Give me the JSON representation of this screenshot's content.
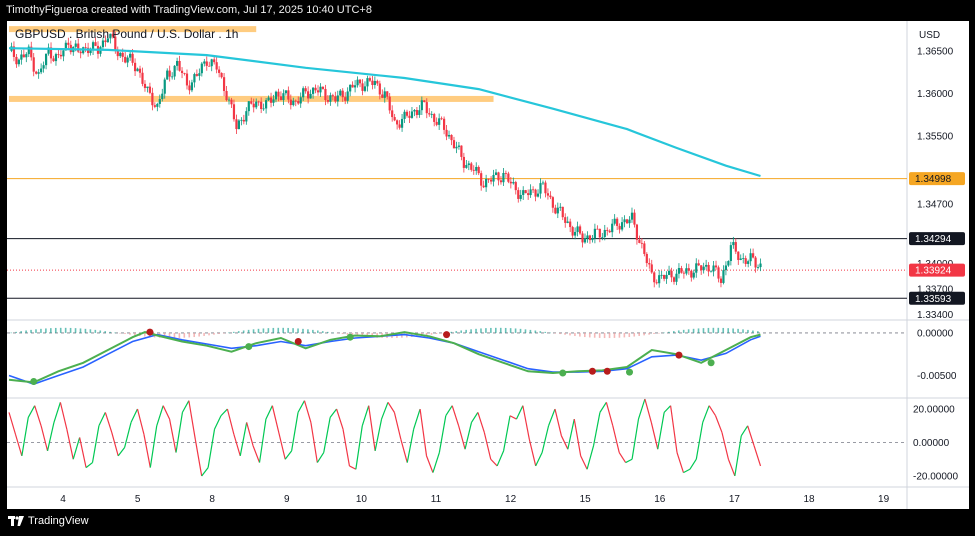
{
  "header": {
    "text": "TimothyFigueroa created with TradingView.com, Jul 17, 2025 10:40 UTC+8"
  },
  "footer": {
    "brand": "TradingView"
  },
  "colors": {
    "up": "#089981",
    "down": "#f23645",
    "ma": "#26c6da",
    "zone": "#ffcc80",
    "level_orange": "#f5a623",
    "level_black": "#131722",
    "current": "#f23645",
    "osc_up": "#00c853",
    "osc_down": "#f23645",
    "wt1": "#4caf50",
    "wt2": "#2962ff",
    "wt_bear": "#b71c1c"
  },
  "chart_data": {
    "type": "line",
    "title": "GBPUSD . British Pound / U.S. Dollar . 1h",
    "currency": "USD",
    "x_labels": [
      "4",
      "5",
      "8",
      "9",
      "10",
      "11",
      "12",
      "15",
      "16",
      "17",
      "18",
      "19"
    ],
    "main": {
      "y_ticks": [
        "1.36500",
        "1.36000",
        "1.35500",
        "1.34700",
        "1.34000",
        "1.33700",
        "1.33400"
      ],
      "y_tick_values": [
        1.365,
        1.36,
        1.355,
        1.347,
        1.34,
        1.337,
        1.334
      ],
      "y_range": [
        1.3335,
        1.3685
      ],
      "price_path": [
        [
          0,
          1.365
        ],
        [
          4,
          1.364
        ],
        [
          8,
          1.3648
        ],
        [
          12,
          1.362
        ],
        [
          16,
          1.365
        ],
        [
          20,
          1.364
        ],
        [
          24,
          1.366
        ],
        [
          28,
          1.3648
        ],
        [
          32,
          1.3655
        ],
        [
          36,
          1.365
        ],
        [
          40,
          1.367
        ],
        [
          44,
          1.3648
        ],
        [
          48,
          1.364
        ],
        [
          52,
          1.363
        ],
        [
          56,
          1.36
        ],
        [
          60,
          1.3585
        ],
        [
          64,
          1.362
        ],
        [
          68,
          1.3635
        ],
        [
          72,
          1.361
        ],
        [
          76,
          1.362
        ],
        [
          80,
          1.364
        ],
        [
          84,
          1.363
        ],
        [
          88,
          1.36
        ],
        [
          92,
          1.356
        ],
        [
          96,
          1.358
        ],
        [
          100,
          1.359
        ],
        [
          104,
          1.3585
        ],
        [
          108,
          1.36
        ],
        [
          112,
          1.3595
        ],
        [
          116,
          1.359
        ],
        [
          120,
          1.36
        ],
        [
          124,
          1.3605
        ],
        [
          128,
          1.3598
        ],
        [
          132,
          1.3593
        ],
        [
          136,
          1.36
        ],
        [
          140,
          1.361
        ],
        [
          144,
          1.3612
        ],
        [
          148,
          1.3612
        ],
        [
          152,
          1.3598
        ],
        [
          156,
          1.3565
        ],
        [
          160,
          1.357
        ],
        [
          164,
          1.358
        ],
        [
          168,
          1.3585
        ],
        [
          172,
          1.357
        ],
        [
          176,
          1.356
        ],
        [
          180,
          1.354
        ],
        [
          184,
          1.352
        ],
        [
          188,
          1.351
        ],
        [
          192,
          1.3495
        ],
        [
          196,
          1.35
        ],
        [
          200,
          1.3505
        ],
        [
          204,
          1.349
        ],
        [
          208,
          1.348
        ],
        [
          212,
          1.3485
        ],
        [
          216,
          1.349
        ],
        [
          220,
          1.347
        ],
        [
          224,
          1.3455
        ],
        [
          228,
          1.344
        ],
        [
          232,
          1.343
        ],
        [
          236,
          1.3433
        ],
        [
          240,
          1.3436
        ],
        [
          244,
          1.3443
        ],
        [
          248,
          1.3449
        ],
        [
          252,
          1.3452
        ],
        [
          256,
          1.342
        ],
        [
          260,
          1.3385
        ],
        [
          264,
          1.3383
        ],
        [
          268,
          1.3387
        ],
        [
          272,
          1.3389
        ],
        [
          276,
          1.3392
        ],
        [
          280,
          1.3395
        ],
        [
          284,
          1.3397
        ],
        [
          288,
          1.338
        ],
        [
          292,
          1.342
        ],
        [
          296,
          1.3406
        ],
        [
          300,
          1.3404
        ],
        [
          304,
          1.3398
        ]
      ],
      "ma_path": [
        [
          0,
          1.3653
        ],
        [
          40,
          1.3651
        ],
        [
          80,
          1.3645
        ],
        [
          120,
          1.363
        ],
        [
          160,
          1.3618
        ],
        [
          190,
          1.3605
        ],
        [
          220,
          1.3582
        ],
        [
          250,
          1.3558
        ],
        [
          270,
          1.3536
        ],
        [
          290,
          1.3515
        ],
        [
          304,
          1.3503
        ]
      ],
      "zones": [
        {
          "x0": 0,
          "x1": 100,
          "y0": 1.3679,
          "y1": 1.3673
        },
        {
          "x0": 0,
          "x1": 196,
          "y0": 1.3597,
          "y1": 1.3591
        }
      ],
      "levels": [
        {
          "value": 1.34998,
          "label": "1.34998",
          "kind": "orange"
        },
        {
          "value": 1.34294,
          "label": "1.34294",
          "kind": "black"
        },
        {
          "value": 1.33924,
          "label": "1.33924",
          "kind": "current"
        },
        {
          "value": 1.33593,
          "label": "1.33593",
          "kind": "black"
        }
      ]
    },
    "oscillator1": {
      "y_ticks": [
        "0.00000",
        "-0.00500"
      ],
      "y_tick_values": [
        0,
        -0.005
      ],
      "y_range": [
        -0.0074,
        0.0014
      ],
      "wt1": [
        [
          0,
          -0.0055
        ],
        [
          10,
          -0.0058
        ],
        [
          20,
          -0.0045
        ],
        [
          30,
          -0.0035
        ],
        [
          40,
          -0.002
        ],
        [
          50,
          -0.0005
        ],
        [
          55,
          0.0001
        ],
        [
          60,
          -0.0003
        ],
        [
          70,
          -0.001
        ],
        [
          80,
          -0.0015
        ],
        [
          90,
          -0.0022
        ],
        [
          100,
          -0.0012
        ],
        [
          110,
          -0.0006
        ],
        [
          120,
          -0.0018
        ],
        [
          130,
          -0.0008
        ],
        [
          140,
          -0.0003
        ],
        [
          150,
          -0.0004
        ],
        [
          160,
          0.0001
        ],
        [
          170,
          -0.0004
        ],
        [
          180,
          -0.0012
        ],
        [
          190,
          -0.0025
        ],
        [
          200,
          -0.0035
        ],
        [
          210,
          -0.0045
        ],
        [
          220,
          -0.0047
        ],
        [
          230,
          -0.0045
        ],
        [
          240,
          -0.0044
        ],
        [
          250,
          -0.004
        ],
        [
          260,
          -0.002
        ],
        [
          270,
          -0.0025
        ],
        [
          280,
          -0.0035
        ],
        [
          290,
          -0.002
        ],
        [
          300,
          -0.0005
        ],
        [
          304,
          -0.0002
        ]
      ],
      "wt2": [
        [
          0,
          -0.005
        ],
        [
          10,
          -0.006
        ],
        [
          20,
          -0.005
        ],
        [
          30,
          -0.004
        ],
        [
          40,
          -0.0025
        ],
        [
          50,
          -0.001
        ],
        [
          60,
          -0.0002
        ],
        [
          70,
          -0.0008
        ],
        [
          80,
          -0.0013
        ],
        [
          90,
          -0.0018
        ],
        [
          100,
          -0.0015
        ],
        [
          110,
          -0.001
        ],
        [
          120,
          -0.0015
        ],
        [
          130,
          -0.001
        ],
        [
          140,
          -0.0006
        ],
        [
          150,
          -0.0004
        ],
        [
          160,
          -0.0002
        ],
        [
          170,
          -0.0006
        ],
        [
          180,
          -0.0012
        ],
        [
          190,
          -0.0022
        ],
        [
          200,
          -0.0032
        ],
        [
          210,
          -0.0042
        ],
        [
          220,
          -0.0046
        ],
        [
          230,
          -0.0046
        ],
        [
          240,
          -0.0045
        ],
        [
          250,
          -0.0042
        ],
        [
          260,
          -0.0028
        ],
        [
          270,
          -0.0026
        ],
        [
          280,
          -0.0032
        ],
        [
          290,
          -0.0024
        ],
        [
          300,
          -0.0008
        ],
        [
          304,
          -0.0004
        ]
      ],
      "dots": [
        {
          "x": 10,
          "v": -0.0057,
          "kind": "green"
        },
        {
          "x": 57,
          "v": 0.0001,
          "kind": "red"
        },
        {
          "x": 97,
          "v": -0.0016,
          "kind": "green"
        },
        {
          "x": 117,
          "v": -0.001,
          "kind": "red"
        },
        {
          "x": 138,
          "v": -0.0005,
          "kind": "green"
        },
        {
          "x": 177,
          "v": -0.0002,
          "kind": "red"
        },
        {
          "x": 224,
          "v": -0.0047,
          "kind": "green"
        },
        {
          "x": 236,
          "v": -0.0045,
          "kind": "red"
        },
        {
          "x": 242,
          "v": -0.0045,
          "kind": "red"
        },
        {
          "x": 251,
          "v": -0.0046,
          "kind": "green"
        },
        {
          "x": 271,
          "v": -0.0026,
          "kind": "red"
        },
        {
          "x": 284,
          "v": -0.0035,
          "kind": "green"
        }
      ]
    },
    "oscillator2": {
      "y_ticks": [
        "20.00000",
        "0.00000",
        "-20.00000"
      ],
      "y_tick_values": [
        20,
        0,
        -20
      ],
      "y_range": [
        -26,
        26
      ],
      "values": [
        18,
        5,
        -8,
        15,
        22,
        10,
        -5,
        12,
        24,
        8,
        -10,
        3,
        -15,
        -12,
        10,
        18,
        6,
        -8,
        -3,
        12,
        20,
        5,
        -15,
        10,
        22,
        14,
        -6,
        18,
        25,
        2,
        -20,
        -15,
        8,
        16,
        20,
        5,
        -8,
        12,
        -2,
        -12,
        14,
        22,
        6,
        -10,
        -5,
        18,
        25,
        12,
        -12,
        -6,
        15,
        20,
        8,
        -14,
        -16,
        10,
        22,
        -5,
        14,
        24,
        18,
        2,
        -12,
        8,
        20,
        -8,
        -18,
        -6,
        16,
        22,
        10,
        -4,
        12,
        18,
        6,
        -10,
        -14,
        -5,
        16,
        14,
        22,
        2,
        -14,
        -6,
        10,
        20,
        4,
        -4,
        14,
        -8,
        -16,
        -2,
        18,
        24,
        10,
        -6,
        -12,
        -10,
        14,
        26,
        12,
        -4,
        18,
        22,
        -6,
        -18,
        -16,
        -10,
        12,
        22,
        16,
        6,
        -10,
        -20,
        4,
        10,
        -2,
        -14
      ]
    }
  }
}
